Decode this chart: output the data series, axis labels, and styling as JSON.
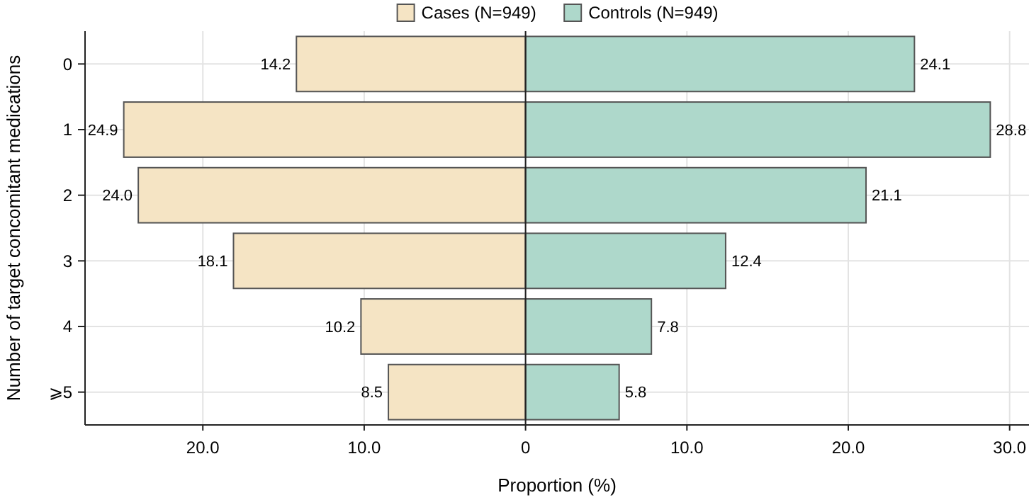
{
  "chart_data": {
    "type": "bar",
    "orientation": "horizontal",
    "xlabel": "Proportion (%)",
    "ylabel": "Number of target concomitant medications",
    "categories": [
      "0",
      "1",
      "2",
      "3",
      "4",
      "⩾5"
    ],
    "series": [
      {
        "name": "Cases (N=949)",
        "color": "#f5e4c4",
        "values": [
          14.2,
          24.9,
          24.0,
          18.1,
          10.2,
          8.5
        ],
        "base": [
          -14.2,
          -24.9,
          -24.0,
          -18.1,
          -10.2,
          -8.5
        ],
        "value_labels": [
          "14.2",
          "24.9",
          "24.0",
          "18.1",
          "10.2",
          "8.5"
        ]
      },
      {
        "name": "Controls (N=949)",
        "color": "#aed8cb",
        "values": [
          24.1,
          28.8,
          21.1,
          12.4,
          7.8,
          5.8
        ],
        "value_labels": [
          "24.1",
          "28.8",
          "21.1",
          "12.4",
          "7.8",
          "5.8"
        ]
      }
    ],
    "xlim": [
      -27.3,
      31.2
    ],
    "xticks": [
      {
        "value": -20,
        "label": "20.0"
      },
      {
        "value": -10,
        "label": "10.0"
      },
      0,
      {
        "value": 10,
        "label": "10.0"
      },
      {
        "value": 20,
        "label": "20.0"
      },
      {
        "value": 30,
        "label": "30.0"
      }
    ],
    "grid": true,
    "legend": "top"
  }
}
